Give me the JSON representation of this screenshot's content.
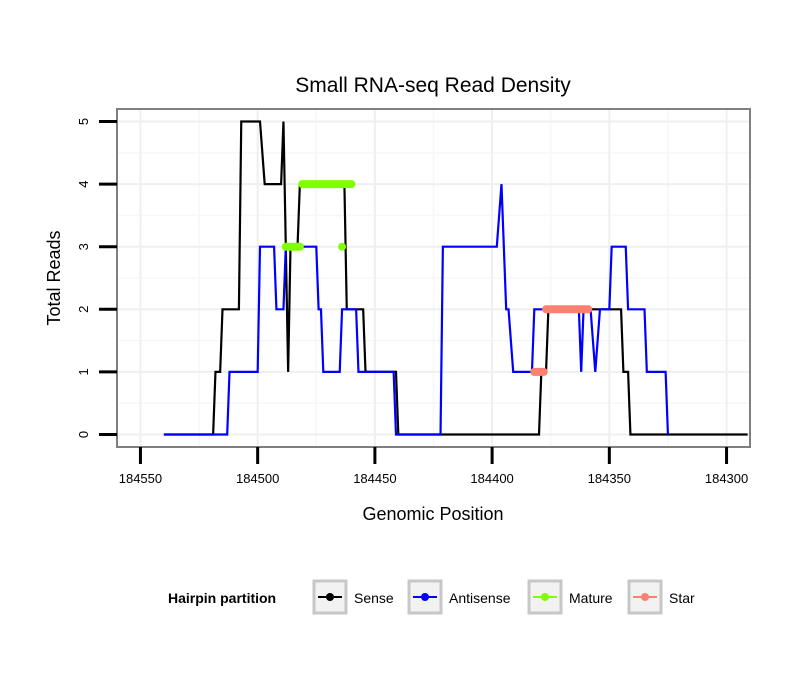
{
  "chart_data": {
    "type": "line",
    "title": "Small RNA-seq Read Density",
    "xlabel": "Genomic Position",
    "ylabel": "Total Reads",
    "xlim": [
      184560,
      184290
    ],
    "x_reversed": true,
    "ylim": [
      -0.2,
      5.2
    ],
    "x_ticks": [
      184550,
      184500,
      184450,
      184400,
      184350,
      184300
    ],
    "x_tick_labels": [
      "184550",
      "184500",
      "184450",
      "184400",
      "184350",
      "184300"
    ],
    "y_ticks": [
      0,
      1,
      2,
      3,
      4,
      5
    ],
    "y_tick_labels": [
      "0",
      "1",
      "2",
      "3",
      "4",
      "5"
    ],
    "grid": true,
    "legend": {
      "title": "Hairpin partition",
      "placement": "bottom",
      "entries": [
        "Sense",
        "Antisense",
        "Mature",
        "Star"
      ]
    },
    "series": [
      {
        "name": "Sense",
        "color": "#000000",
        "style": "line",
        "points": [
          [
            184540,
            0
          ],
          [
            184519,
            0
          ],
          [
            184518,
            1
          ],
          [
            184516,
            1
          ],
          [
            184515,
            2
          ],
          [
            184508,
            2
          ],
          [
            184507,
            5
          ],
          [
            184499,
            5
          ],
          [
            184497,
            4
          ],
          [
            184490,
            4
          ],
          [
            184489,
            5
          ],
          [
            184487,
            1
          ],
          [
            184486,
            3
          ],
          [
            184483,
            3
          ],
          [
            184482,
            4
          ],
          [
            184463,
            4
          ],
          [
            184462,
            2
          ],
          [
            184455,
            2
          ],
          [
            184454,
            1
          ],
          [
            184441,
            1
          ],
          [
            184440,
            0
          ],
          [
            184415,
            0
          ],
          [
            184383,
            0
          ],
          [
            184380,
            0
          ],
          [
            184379,
            1
          ],
          [
            184377,
            1
          ],
          [
            184376,
            2
          ],
          [
            184345,
            2
          ],
          [
            184344,
            1
          ],
          [
            184342,
            1
          ],
          [
            184341,
            0
          ],
          [
            184291,
            0
          ]
        ]
      },
      {
        "name": "Antisense",
        "color": "#0000ff",
        "style": "line",
        "points": [
          [
            184540,
            0
          ],
          [
            184513,
            0
          ],
          [
            184512,
            1
          ],
          [
            184500,
            1
          ],
          [
            184499,
            3
          ],
          [
            184493,
            3
          ],
          [
            184492,
            2
          ],
          [
            184489,
            2
          ],
          [
            184488,
            3
          ],
          [
            184475,
            3
          ],
          [
            184474,
            2
          ],
          [
            184473,
            2
          ],
          [
            184472,
            1
          ],
          [
            184465,
            1
          ],
          [
            184464,
            2
          ],
          [
            184458,
            2
          ],
          [
            184457,
            1
          ],
          [
            184442,
            1
          ],
          [
            184441,
            0
          ],
          [
            184422,
            0
          ],
          [
            184421,
            3
          ],
          [
            184398,
            3
          ],
          [
            184396,
            4
          ],
          [
            184394,
            2
          ],
          [
            184393,
            2
          ],
          [
            184391,
            1
          ],
          [
            184383,
            1
          ],
          [
            184382,
            2
          ],
          [
            184363,
            2
          ],
          [
            184362,
            1
          ],
          [
            184361,
            2
          ],
          [
            184358,
            2
          ],
          [
            184356,
            1
          ],
          [
            184354,
            2
          ],
          [
            184350,
            2
          ],
          [
            184349,
            3
          ],
          [
            184343,
            3
          ],
          [
            184342,
            2
          ],
          [
            184335,
            2
          ],
          [
            184334,
            1
          ],
          [
            184326,
            1
          ],
          [
            184325,
            0
          ]
        ]
      },
      {
        "name": "Mature",
        "color": "#7fff00",
        "style": "points",
        "segments": [
          [
            [
              184488,
              3
            ],
            [
              184482,
              3
            ]
          ],
          [
            [
              184481,
              4
            ],
            [
              184460,
              4
            ]
          ],
          [
            [
              184464,
              3
            ],
            [
              184464,
              3
            ]
          ]
        ]
      },
      {
        "name": "Star",
        "color": "#fa8072",
        "style": "points",
        "segments": [
          [
            [
              184382,
              1
            ],
            [
              184378,
              1
            ]
          ],
          [
            [
              184377,
              2
            ],
            [
              184359,
              2
            ]
          ]
        ]
      }
    ]
  }
}
